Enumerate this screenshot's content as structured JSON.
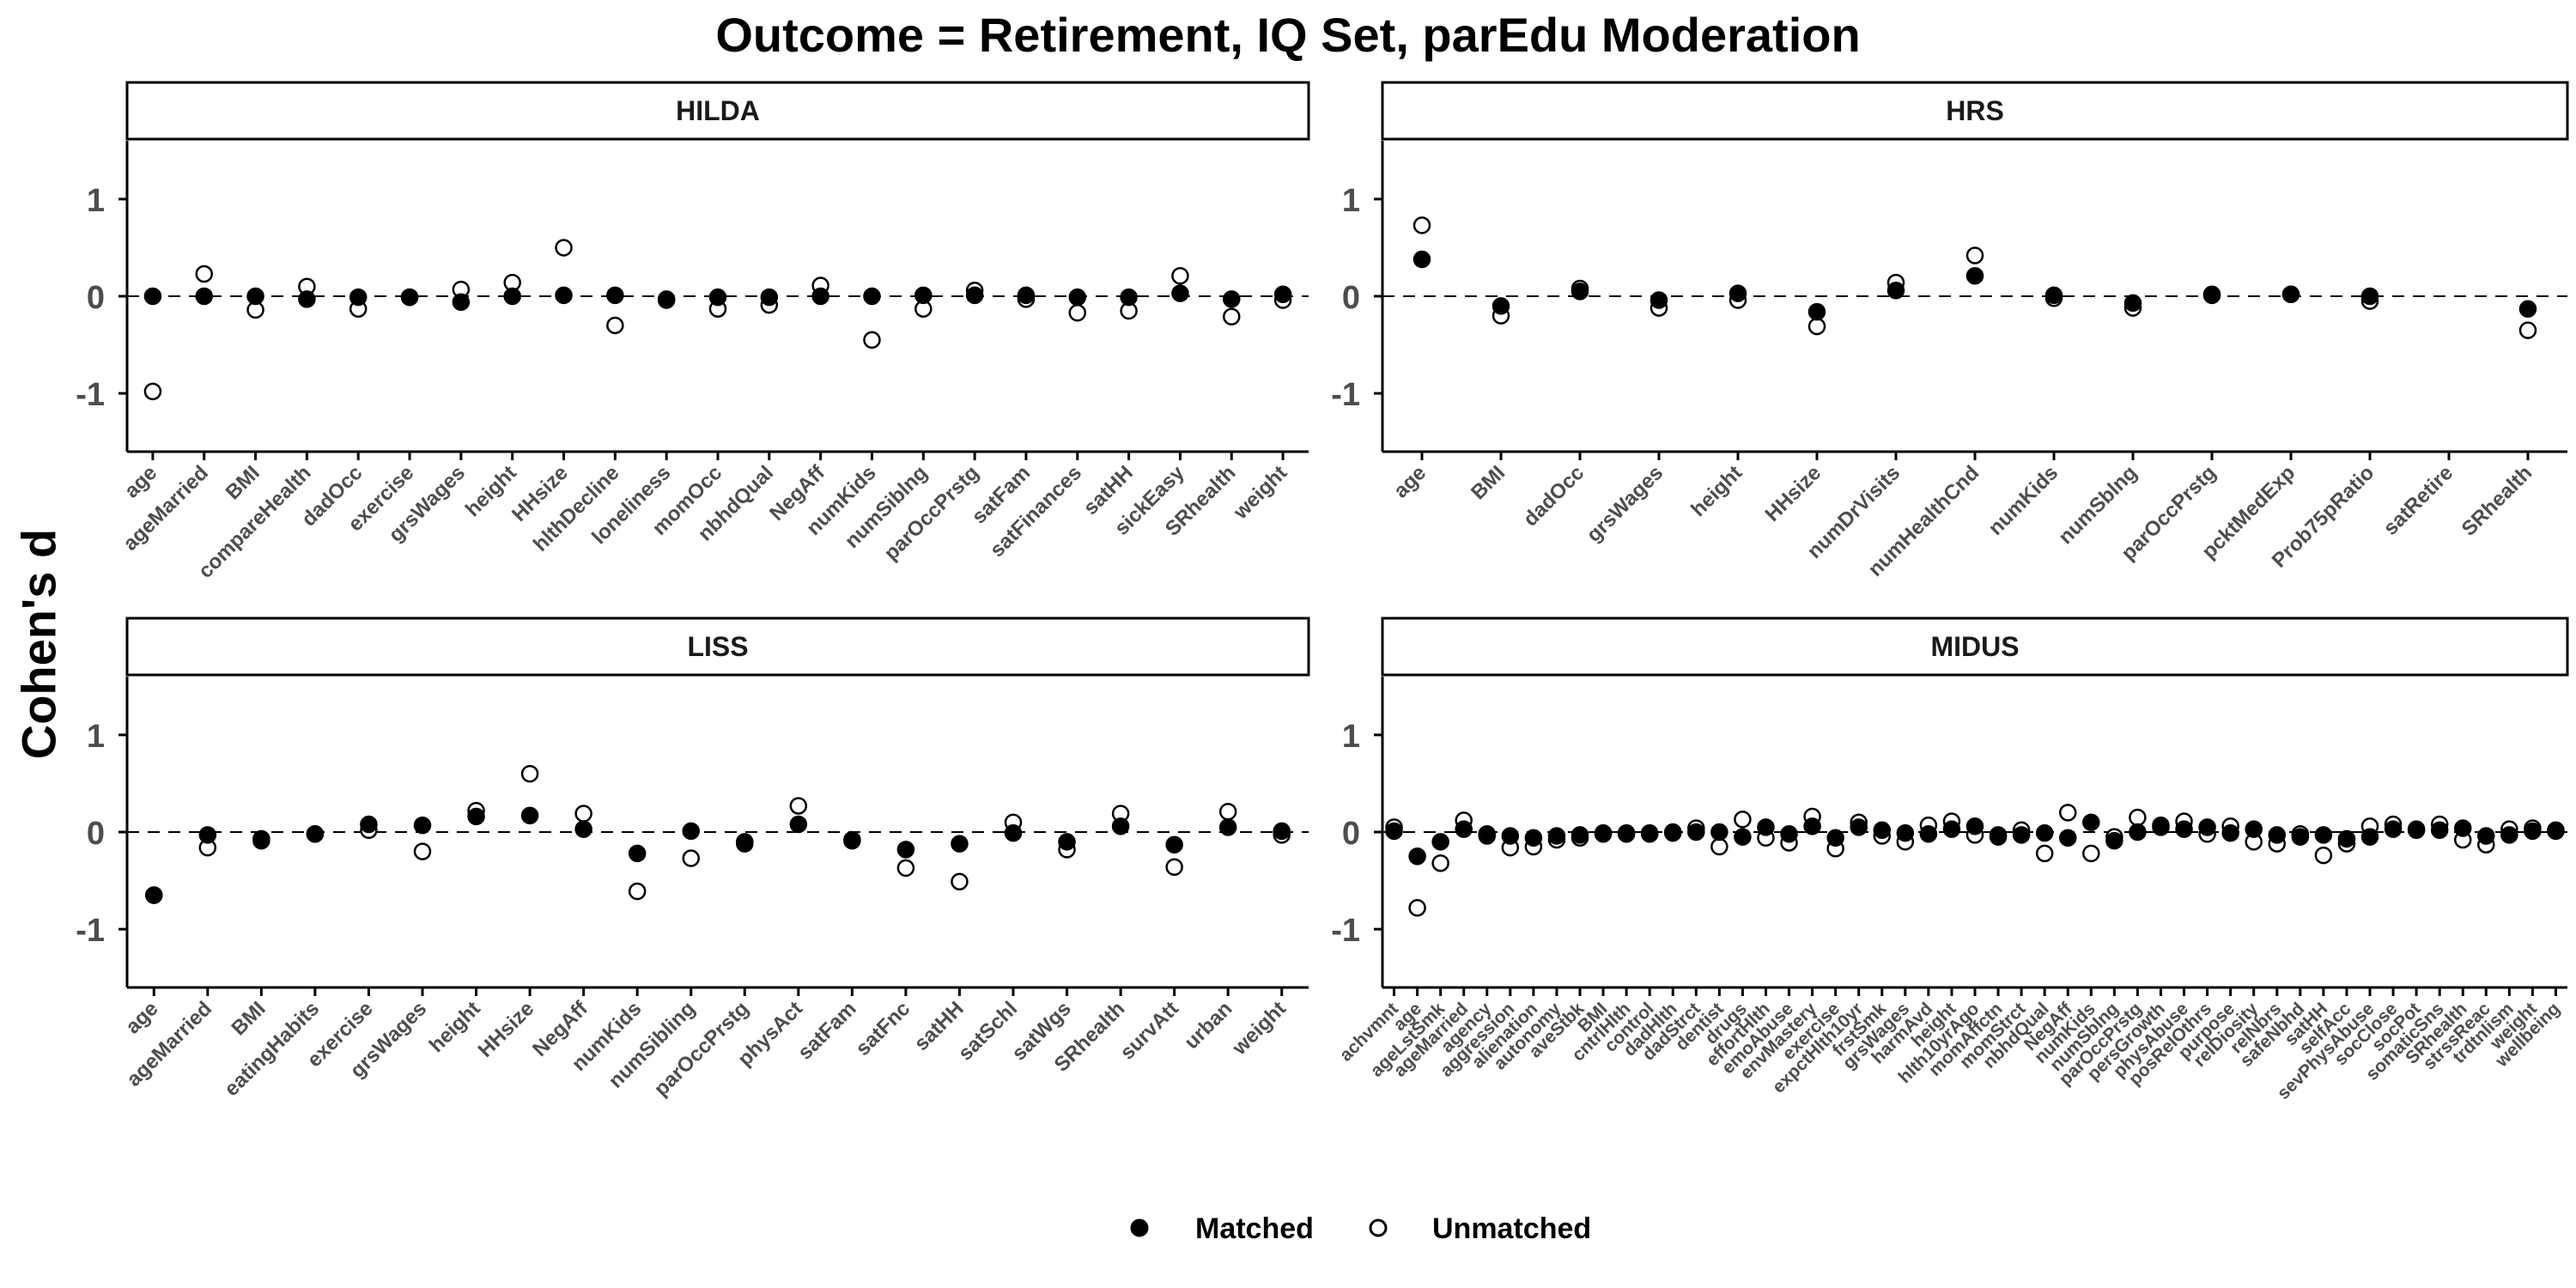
{
  "title": "Outcome = Retirement, IQ Set, parEdu Moderation",
  "ylabel": "Cohen's d",
  "legend": {
    "matched": "Matched",
    "unmatched": "Unmatched"
  },
  "colors": {
    "matched": "#000000",
    "unmatched": "#ffffff",
    "strip_fill": "#ffffff",
    "axis": "#000000",
    "tick_text": "#4d4d4d"
  },
  "chart_data": [
    {
      "type": "scatter",
      "panel": "HILDA",
      "ylim": [
        -1.6,
        1.6
      ],
      "yticks": [
        -1,
        0,
        1
      ],
      "reference_line": 0,
      "categories": [
        "age",
        "ageMarried",
        "BMI",
        "compareHealth",
        "dadOcc",
        "exercise",
        "grsWages",
        "height",
        "HHsize",
        "hlthDecline",
        "loneliness",
        "momOcc",
        "nbhdQual",
        "NegAff",
        "numKids",
        "numSiblng",
        "parOccPrstg",
        "satFam",
        "satFinances",
        "satHH",
        "sickEasy",
        "SRhealth",
        "weight"
      ],
      "series": [
        {
          "name": "Matched",
          "values": [
            0.0,
            0.0,
            0.0,
            -0.03,
            -0.01,
            -0.01,
            -0.06,
            0.0,
            0.01,
            0.01,
            -0.03,
            -0.01,
            -0.01,
            0.0,
            0.0,
            0.01,
            0.01,
            0.01,
            -0.01,
            -0.01,
            0.03,
            -0.03,
            0.02
          ]
        },
        {
          "name": "Unmatched",
          "values": [
            -0.98,
            0.23,
            -0.14,
            0.1,
            -0.13,
            -0.01,
            0.07,
            0.14,
            0.5,
            -0.3,
            -0.04,
            -0.13,
            -0.09,
            0.11,
            -0.45,
            -0.13,
            0.06,
            -0.03,
            -0.17,
            -0.15,
            0.21,
            -0.21,
            -0.04
          ]
        }
      ]
    },
    {
      "type": "scatter",
      "panel": "HRS",
      "ylim": [
        -1.6,
        1.6
      ],
      "yticks": [
        -1,
        0,
        1
      ],
      "reference_line": 0,
      "categories": [
        "age",
        "BMI",
        "dadOcc",
        "grsWages",
        "height",
        "HHsize",
        "numDrVisits",
        "numHealthCnd",
        "numKids",
        "numSblng",
        "parOccPrstg",
        "pcktMedExp",
        "Prob75pRatio",
        "satRetire",
        "SRhealth"
      ],
      "series": [
        {
          "name": "Matched",
          "values": [
            0.38,
            -0.1,
            0.05,
            -0.04,
            0.03,
            -0.16,
            0.06,
            0.21,
            0.01,
            -0.07,
            0.02,
            0.02,
            0.0,
            null,
            -0.13
          ]
        },
        {
          "name": "Unmatched",
          "values": [
            0.73,
            -0.2,
            0.08,
            -0.12,
            -0.04,
            -0.31,
            0.14,
            0.42,
            -0.02,
            -0.12,
            0.01,
            0.02,
            -0.05,
            null,
            -0.35
          ]
        }
      ]
    },
    {
      "type": "scatter",
      "panel": "LISS",
      "ylim": [
        -1.6,
        1.6
      ],
      "yticks": [
        -1,
        0,
        1
      ],
      "reference_line": 0,
      "categories": [
        "age",
        "ageMarried",
        "BMI",
        "eatingHabits",
        "exercise",
        "grsWages",
        "height",
        "HHsize",
        "NegAff",
        "numKids",
        "numSibling",
        "parOccPrstg",
        "physAct",
        "satFam",
        "satFnc",
        "satHH",
        "satSchl",
        "satWgs",
        "SRhealth",
        "survAtt",
        "urban",
        "weight"
      ],
      "series": [
        {
          "name": "Matched",
          "values": [
            -0.65,
            -0.03,
            -0.09,
            -0.02,
            0.08,
            0.07,
            0.16,
            0.17,
            0.03,
            -0.22,
            0.01,
            -0.1,
            0.08,
            -0.08,
            -0.18,
            -0.12,
            -0.01,
            -0.1,
            0.06,
            -0.13,
            0.05,
            0.01
          ]
        },
        {
          "name": "Unmatched",
          "values": [
            -0.65,
            -0.16,
            -0.07,
            -0.02,
            0.02,
            -0.2,
            0.22,
            0.6,
            0.19,
            -0.61,
            -0.27,
            -0.12,
            0.27,
            -0.09,
            -0.37,
            -0.51,
            0.1,
            -0.18,
            0.19,
            -0.36,
            0.21,
            -0.03
          ]
        }
      ]
    },
    {
      "type": "scatter",
      "panel": "MIDUS",
      "ylim": [
        -1.6,
        1.6
      ],
      "yticks": [
        -1,
        0,
        1
      ],
      "reference_line": 0,
      "categories": [
        "achvmnt",
        "age",
        "ageLstSmk",
        "ageMarried",
        "agency",
        "aggression",
        "alienation",
        "autonomy",
        "aveStbk",
        "BMI",
        "cntrlHlth",
        "control",
        "dadHlth",
        "dadStrct",
        "dentist",
        "drugs",
        "effortHlth",
        "emoAbuse",
        "envMastery",
        "exercise",
        "expctHlth10yr",
        "frstSmk",
        "grsWages",
        "harmAvd",
        "height",
        "hlth10yrAgo",
        "momAffctn",
        "momStrct",
        "nbhdQual",
        "NegAff",
        "numKids",
        "numSblng",
        "parOccPrstg",
        "persGrowth",
        "physAbuse",
        "posRelOthrs",
        "purpose",
        "relDiosity",
        "relNbrs",
        "safeNbhd",
        "satHH",
        "selfAcc",
        "sevPhysAbuse",
        "socClose",
        "socPot",
        "somaticSns",
        "SRhealth",
        "strssReac",
        "trdtnlism",
        "weight",
        "wellbeing"
      ],
      "series": [
        {
          "name": "Matched",
          "values": [
            0.01,
            -0.25,
            -0.1,
            0.03,
            -0.04,
            -0.04,
            -0.06,
            -0.04,
            -0.03,
            -0.02,
            -0.02,
            -0.02,
            -0.01,
            0.0,
            0.0,
            -0.05,
            0.05,
            -0.02,
            0.06,
            -0.06,
            0.05,
            0.02,
            -0.01,
            -0.02,
            0.03,
            0.06,
            -0.05,
            -0.03,
            -0.01,
            -0.06,
            0.1,
            -0.09,
            0.0,
            0.05,
            0.03,
            0.05,
            -0.01,
            0.03,
            -0.03,
            -0.05,
            -0.03,
            -0.07,
            -0.05,
            0.03,
            0.03,
            0.02,
            0.04,
            -0.04,
            -0.03,
            0.01,
            0.02
          ]
        },
        {
          "name": "Unmatched",
          "values": [
            0.05,
            -0.78,
            -0.32,
            0.12,
            -0.02,
            -0.16,
            -0.15,
            -0.08,
            -0.06,
            -0.01,
            -0.01,
            -0.01,
            0.0,
            0.04,
            -0.15,
            0.13,
            -0.06,
            -0.11,
            0.16,
            -0.17,
            0.1,
            -0.04,
            -0.1,
            0.07,
            0.11,
            -0.03,
            -0.03,
            0.02,
            -0.22,
            0.2,
            -0.22,
            -0.05,
            0.15,
            0.07,
            0.11,
            -0.02,
            0.06,
            -0.1,
            -0.12,
            -0.02,
            -0.24,
            -0.12,
            0.06,
            0.08,
            0.02,
            0.08,
            -0.08,
            -0.13,
            0.03,
            0.04,
            0.01
          ]
        }
      ]
    }
  ]
}
